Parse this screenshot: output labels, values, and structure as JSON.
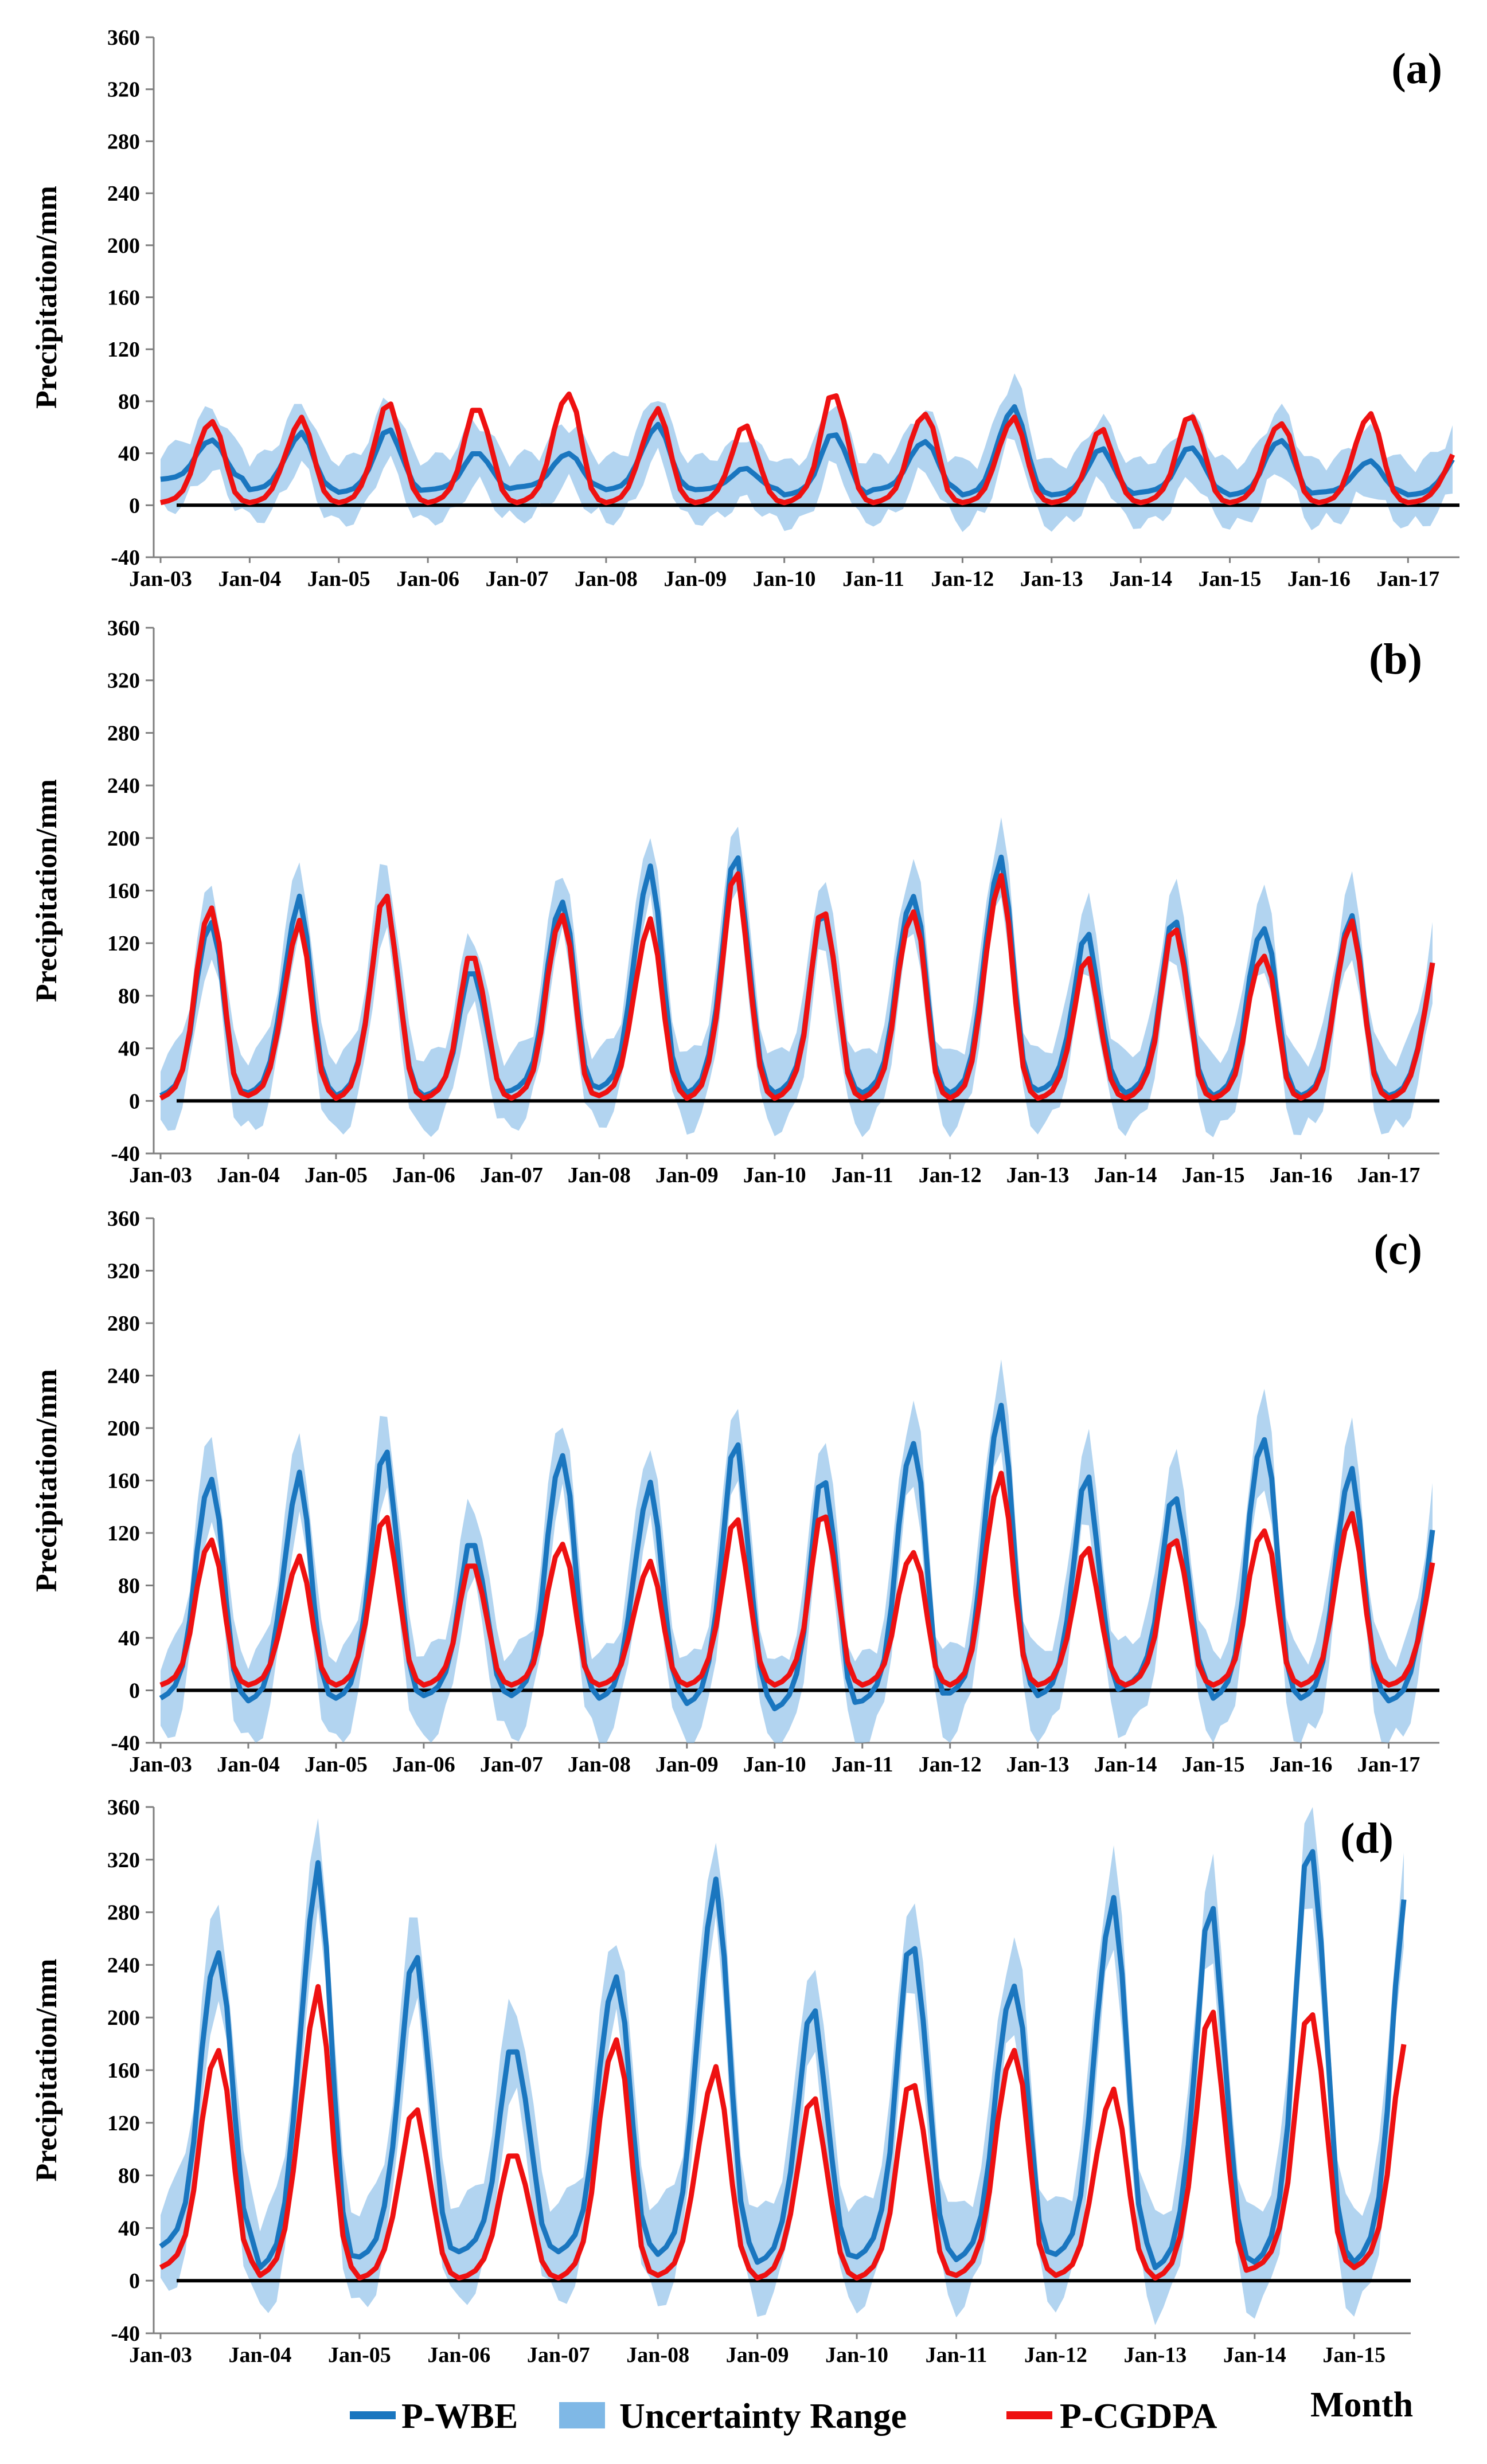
{
  "figure": {
    "legend": {
      "wbe": "P-WBE",
      "range": "Uncertainty Range",
      "cgdpa": "P-CGDPA",
      "x_title": "Month"
    },
    "colors": {
      "wbe": "#1a76bf",
      "range": "#7fb8e6",
      "cgdpa": "#ee1111",
      "axis": "#7f7f7f"
    }
  },
  "chart_data": [
    {
      "type": "line",
      "panel_label": "(a)",
      "ylabel": "Precipitation/mm",
      "ylim": [
        -40,
        360
      ],
      "yticks": [
        -40,
        0,
        40,
        80,
        120,
        160,
        200,
        240,
        280,
        320,
        360
      ],
      "x_start": "Jan-03",
      "x_tick_labels": [
        "Jan-03",
        "Jan-04",
        "Jan-05",
        "Jan-06",
        "Jan-07",
        "Jan-08",
        "Jan-09",
        "Jan-10",
        "Jan-11",
        "Jan-12",
        "Jan-13",
        "Jan-14",
        "Jan-15",
        "Jan-16",
        "Jan-17"
      ],
      "series": [
        {
          "name": "P-WBE",
          "type": "line",
          "peak_month": [
            50,
            55,
            58,
            40,
            40,
            62,
            28,
            54,
            50,
            76,
            42,
            44,
            52,
            34,
            36
          ],
          "trough": [
            20,
            12,
            10,
            12,
            14,
            12,
            12,
            8,
            12,
            8,
            8,
            10,
            8,
            10,
            8
          ]
        },
        {
          "name": "P-CGDPA",
          "type": "line",
          "peak_month": [
            64,
            66,
            78,
            74,
            86,
            74,
            60,
            84,
            72,
            68,
            56,
            68,
            66,
            70,
            40
          ],
          "trough": [
            2,
            2,
            2,
            2,
            2,
            2,
            2,
            2,
            2,
            2,
            2,
            2,
            2,
            2,
            2
          ]
        },
        {
          "name": "Uncertainty Range",
          "type": "band",
          "spread": 22
        }
      ]
    },
    {
      "type": "line",
      "panel_label": "(b)",
      "ylabel": "Precipitation/mm",
      "ylim": [
        -40,
        360
      ],
      "yticks": [
        -40,
        0,
        40,
        80,
        120,
        160,
        200,
        240,
        280,
        320,
        360
      ],
      "x_start": "Jan-03",
      "x_tick_labels": [
        "Jan-03",
        "Jan-04",
        "Jan-05",
        "Jan-06",
        "Jan-07",
        "Jan-08",
        "Jan-09",
        "Jan-10",
        "Jan-11",
        "Jan-12",
        "Jan-13",
        "Jan-14",
        "Jan-15",
        "Jan-16",
        "Jan-17"
      ],
      "series": [
        {
          "name": "P-WBE",
          "type": "line",
          "peak_month": [
            135,
            152,
            156,
            98,
            152,
            178,
            182,
            140,
            160,
            186,
            122,
            136,
            138,
            140,
            108
          ],
          "trough": [
            4,
            6,
            4,
            4,
            8,
            10,
            6,
            6,
            6,
            6,
            8,
            6,
            4,
            4,
            4
          ]
        },
        {
          "name": "P-CGDPA",
          "type": "line",
          "peak_month": [
            146,
            134,
            156,
            110,
            142,
            138,
            170,
            142,
            148,
            172,
            104,
            130,
            116,
            136,
            108
          ],
          "trough": [
            2,
            4,
            2,
            2,
            2,
            4,
            2,
            2,
            2,
            2,
            2,
            2,
            2,
            2,
            2
          ]
        },
        {
          "name": "Uncertainty Range",
          "type": "band",
          "spread": 26
        }
      ]
    },
    {
      "type": "line",
      "panel_label": "(c)",
      "ylabel": "Precipitation/mm",
      "ylim": [
        -40,
        360
      ],
      "yticks": [
        -40,
        0,
        40,
        80,
        120,
        160,
        200,
        240,
        280,
        320,
        360
      ],
      "x_start": "Jan-03",
      "x_tick_labels": [
        "Jan-03",
        "Jan-04",
        "Jan-05",
        "Jan-06",
        "Jan-07",
        "Jan-08",
        "Jan-09",
        "Jan-10",
        "Jan-11",
        "Jan-12",
        "Jan-13",
        "Jan-14",
        "Jan-15",
        "Jan-16",
        "Jan-17"
      ],
      "series": [
        {
          "name": "P-WBE",
          "type": "line",
          "peak_month": [
            160,
            162,
            182,
            112,
            180,
            158,
            184,
            158,
            194,
            218,
            156,
            146,
            202,
            168,
            126
          ],
          "trough": [
            -6,
            -8,
            -6,
            -4,
            -4,
            -6,
            -10,
            -14,
            -8,
            -2,
            -4,
            4,
            -6,
            -6,
            -8
          ]
        },
        {
          "name": "P-CGDPA",
          "type": "line",
          "peak_month": [
            114,
            100,
            132,
            96,
            112,
            98,
            128,
            132,
            108,
            166,
            104,
            114,
            128,
            134,
            100
          ],
          "trough": [
            4,
            4,
            4,
            4,
            4,
            4,
            4,
            4,
            4,
            4,
            4,
            4,
            4,
            4,
            4
          ]
        },
        {
          "name": "Uncertainty Range",
          "type": "band",
          "spread": 30
        }
      ]
    },
    {
      "type": "line",
      "panel_label": "(d)",
      "ylabel": "Precipitation/mm",
      "ylim": [
        -40,
        360
      ],
      "yticks": [
        -40,
        0,
        40,
        80,
        120,
        160,
        200,
        240,
        280,
        320,
        360
      ],
      "x_start": "Jan-03",
      "x_tick_labels": [
        "Jan-03",
        "Jan-04",
        "Jan-05",
        "Jan-06",
        "Jan-07",
        "Jan-08",
        "Jan-09",
        "Jan-10",
        "Jan-11",
        "Jan-12",
        "Jan-13",
        "Jan-14",
        "Jan-15"
      ],
      "series": [
        {
          "name": "P-WBE",
          "type": "line",
          "peak_month": [
            248,
            310,
            246,
            176,
            232,
            304,
            202,
            252,
            230,
            292,
            272,
            326
          ],
          "trough": [
            26,
            10,
            18,
            22,
            22,
            20,
            14,
            18,
            16,
            20,
            10,
            14
          ]
        },
        {
          "name": "P-CGDPA",
          "type": "line",
          "peak_month": [
            174,
            218,
            130,
            96,
            184,
            162,
            136,
            148,
            180,
            146,
            196,
            202
          ],
          "trough": [
            10,
            4,
            2,
            2,
            2,
            4,
            2,
            2,
            4,
            4,
            2,
            10
          ]
        },
        {
          "name": "Uncertainty Range",
          "type": "band",
          "spread": 34
        }
      ]
    }
  ]
}
